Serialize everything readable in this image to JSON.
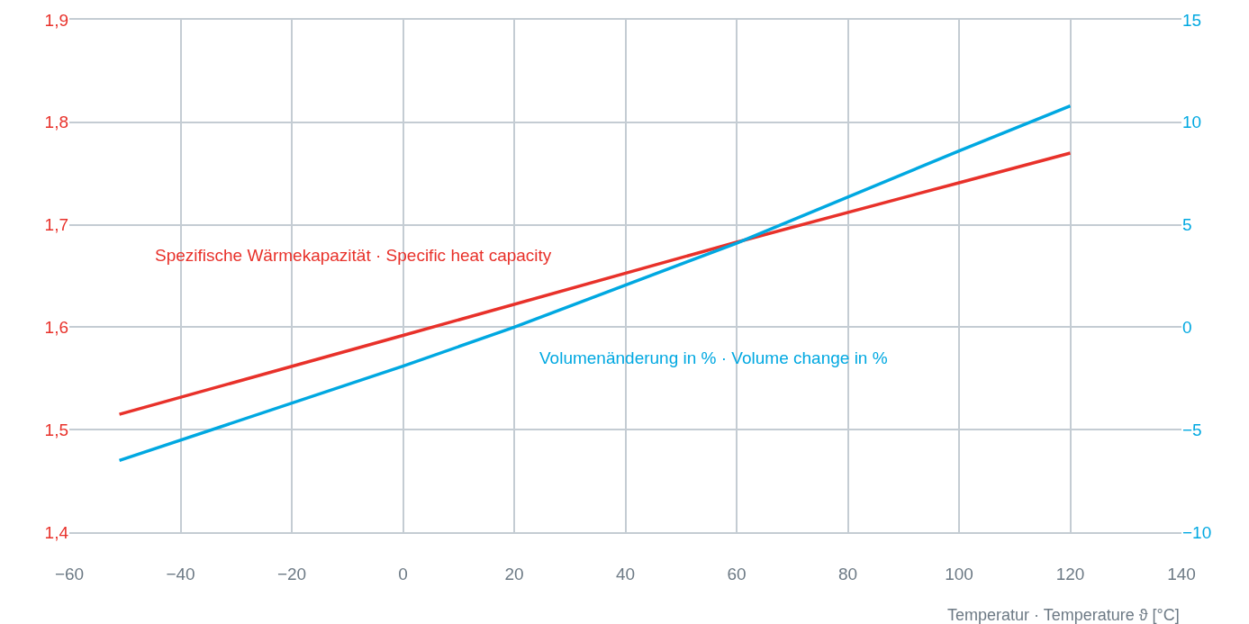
{
  "chart_data": {
    "type": "line",
    "xlabel": "Temperatur · Temperature ϑ [°C]",
    "xlim": [
      -60,
      140
    ],
    "xticks": [
      -60,
      -40,
      -20,
      0,
      20,
      40,
      60,
      80,
      100,
      120,
      140
    ],
    "ylim": [
      1.4,
      1.9
    ],
    "yticks": [
      {
        "value": 1.4,
        "label": "1,4"
      },
      {
        "value": 1.5,
        "label": "1,5"
      },
      {
        "value": 1.6,
        "label": "1,6"
      },
      {
        "value": 1.7,
        "label": "1,7"
      },
      {
        "value": 1.8,
        "label": "1,8"
      },
      {
        "value": 1.9,
        "label": "1,9"
      }
    ],
    "y2lim": [
      -10,
      15
    ],
    "y2ticks": [
      -10,
      -5,
      0,
      5,
      10,
      15
    ],
    "grid": true,
    "marker": "none",
    "line_style": "solid",
    "series": [
      {
        "name": "Spezifische Wärmekapazität · Specific heat capacity",
        "color": "#e8312a",
        "x": [
          -51,
          0,
          60,
          100,
          120
        ],
        "values": [
          1.515,
          1.592,
          1.683,
          1.741,
          1.77
        ]
      },
      {
        "name": "Volumenänderung in % · Volume change in %",
        "color": "#00a8e1",
        "axis": "y2",
        "x": [
          -51,
          0,
          20,
          60,
          100,
          120
        ],
        "values": [
          -6.5,
          -1.9,
          0,
          4.1,
          8.6,
          10.8
        ]
      }
    ]
  }
}
